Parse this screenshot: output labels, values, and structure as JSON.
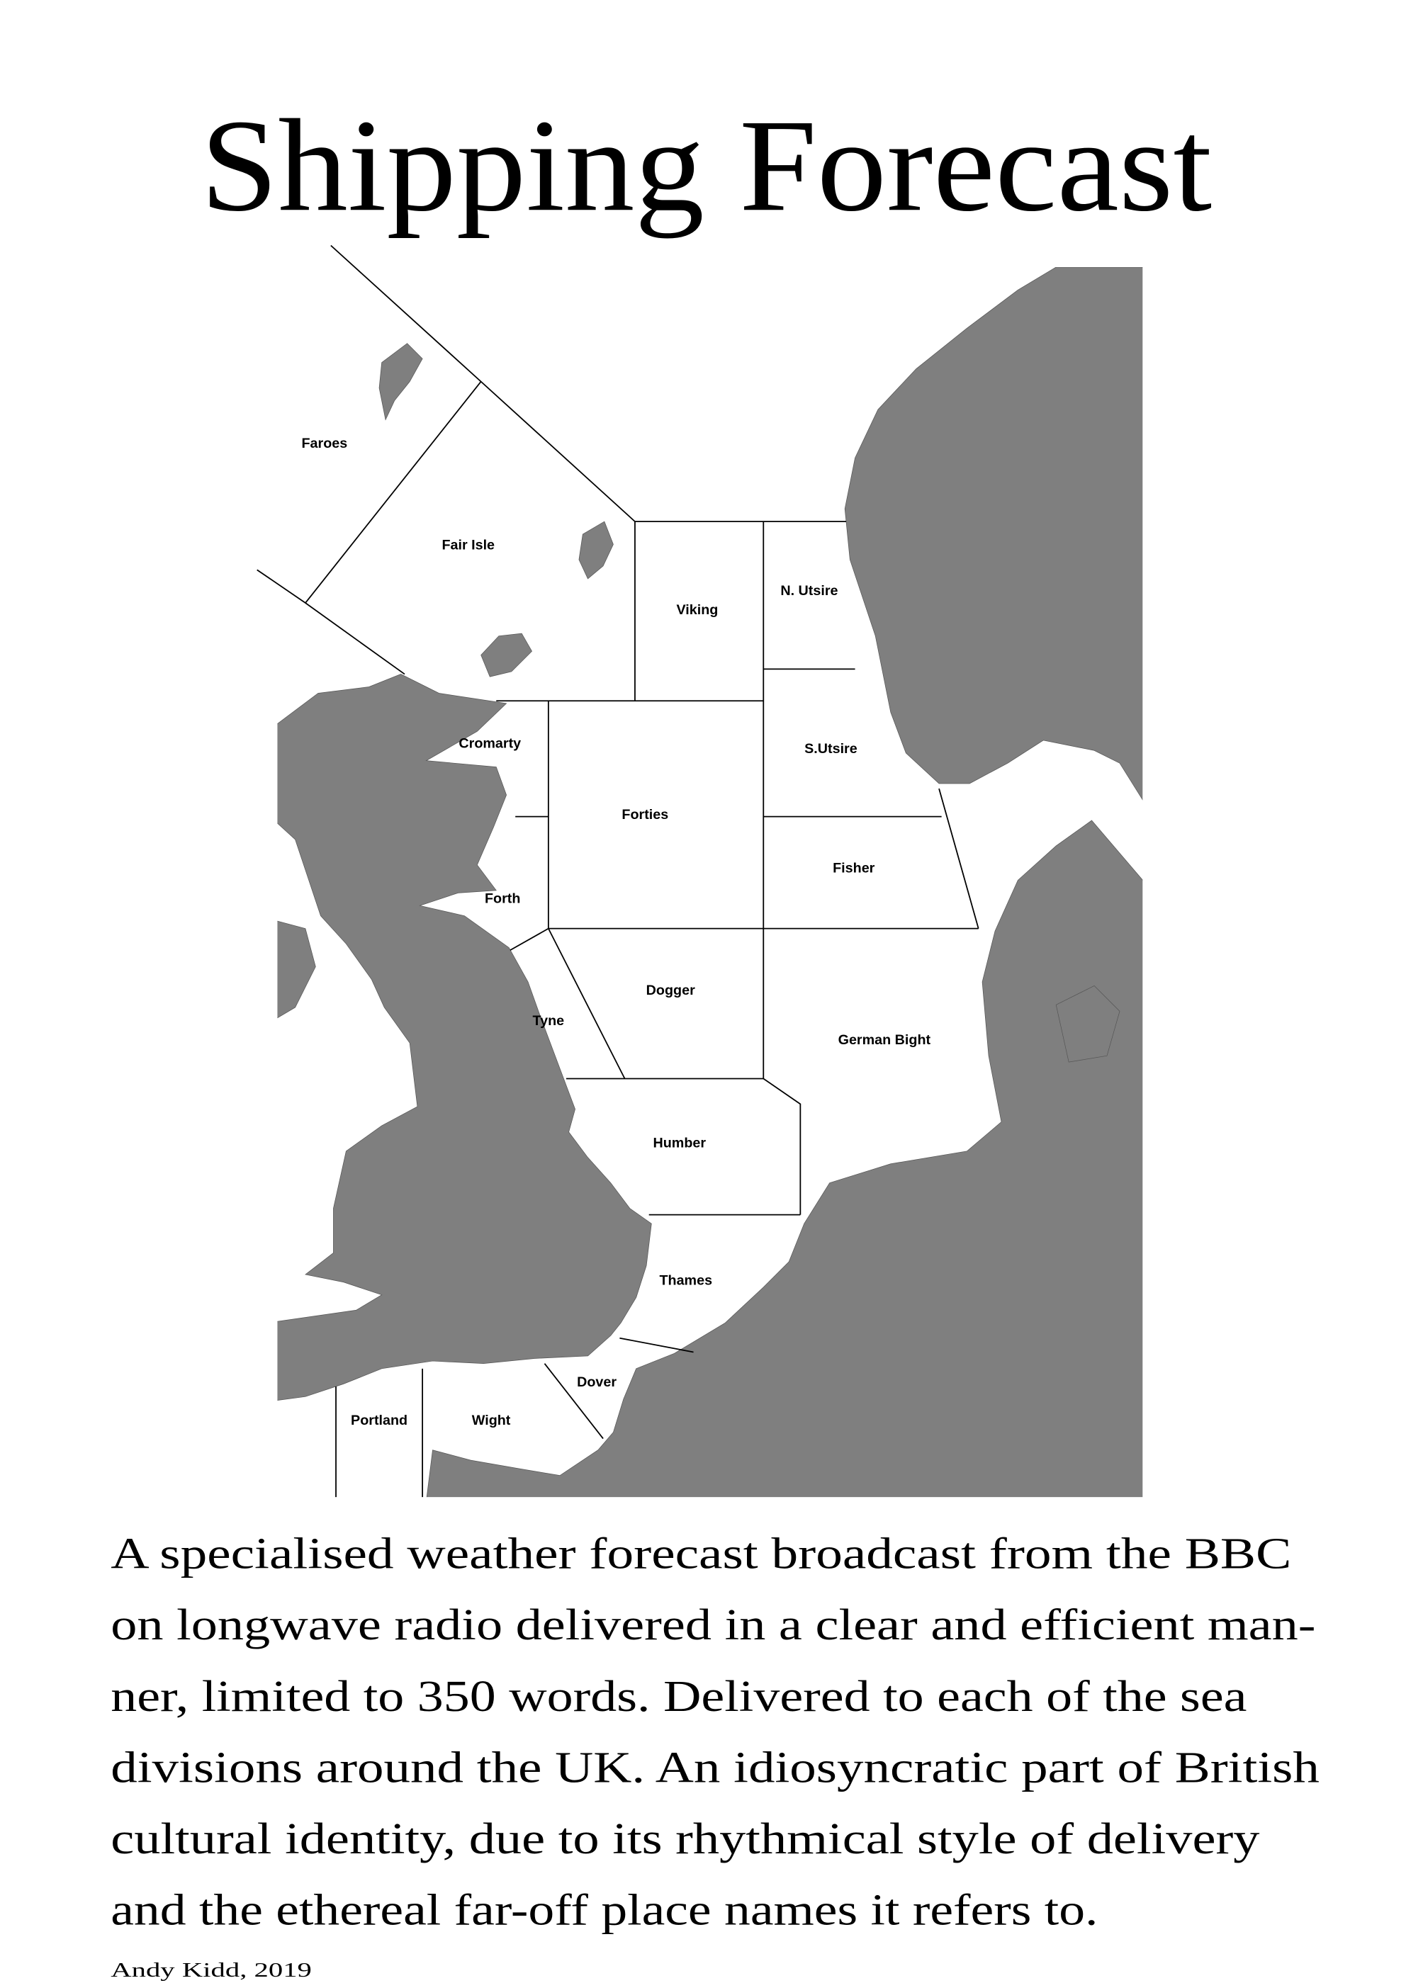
{
  "title": "Shipping Forecast",
  "map": {
    "land_color": "#7f7f7f",
    "sea_areas": [
      "Faroes",
      "Fair Isle",
      "Viking",
      "N. Utsire",
      "S.Utsire",
      "Cromarty",
      "Forties",
      "Forth",
      "Fisher",
      "Dogger",
      "Tyne",
      "German Bight",
      "Humber",
      "Thames",
      "Dover",
      "Portland",
      "Wight"
    ]
  },
  "description_lines": [
    "A specialised weather forecast broadcast from the BBC",
    "on longwave radio delivered in a clear and efficient man-",
    "ner, limited to 350 words. Delivered to each of the sea",
    "divisions around the UK. An idiosyncratic part of British",
    "cultural identity, due to its rhythmical style of delivery",
    "and the ethereal far-off place names it refers to."
  ],
  "credit": "Andy Kidd, 2019"
}
